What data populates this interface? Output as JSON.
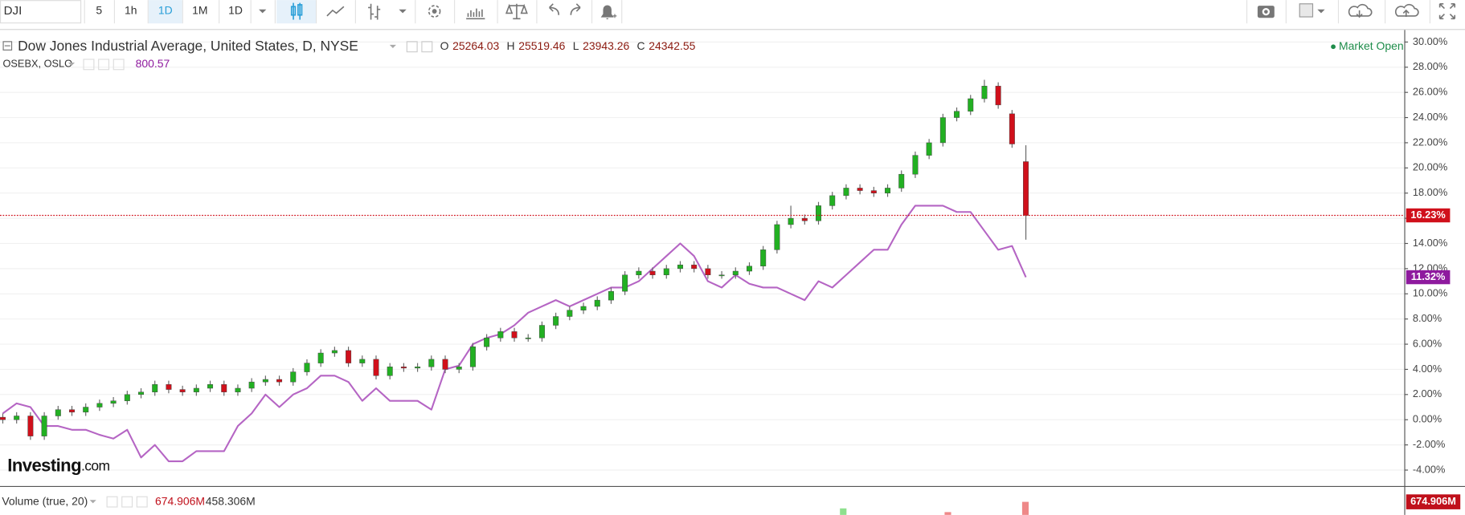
{
  "toolbar": {
    "symbol": "DJI",
    "intervals": [
      "5",
      "1h",
      "1D",
      "1M"
    ],
    "interval_menu": "1D"
  },
  "chart_data": {
    "type": "candlestick",
    "status": "Market Open",
    "ylim": [
      -5.19,
      30.96
    ],
    "yticks": [
      {
        "value": -4,
        "label": "-4.00%"
      },
      {
        "value": -2,
        "label": "-2.00%"
      },
      {
        "value": 0,
        "label": "0.00%"
      },
      {
        "value": 2,
        "label": "2.00%"
      },
      {
        "value": 4,
        "label": "4.00%"
      },
      {
        "value": 6,
        "label": "6.00%"
      },
      {
        "value": 8,
        "label": "8.00%"
      },
      {
        "value": 10,
        "label": "10.00%"
      },
      {
        "value": 12,
        "label": "12.00%"
      },
      {
        "value": 14,
        "label": "14.00%"
      },
      {
        "value": 16,
        "label": "16.00%"
      },
      {
        "value": 18,
        "label": "18.00%"
      },
      {
        "value": 20,
        "label": "20.00%"
      },
      {
        "value": 22,
        "label": "22.00%"
      },
      {
        "value": 24,
        "label": "24.00%"
      },
      {
        "value": 26,
        "label": "26.00%"
      },
      {
        "value": 28,
        "label": "28.00%"
      },
      {
        "value": 30,
        "label": "30.00%"
      }
    ],
    "grid": true,
    "series": [
      {
        "name": "Dow Jones Industrial Average, United States, D, NYSE",
        "type": "candlestick",
        "up_color": "#22b022",
        "down_color": "#d0101b",
        "ohlc": [
          {
            "label": "O",
            "value": 25264.03
          },
          {
            "label": "H",
            "value": 25519.46
          },
          {
            "label": "L",
            "value": 23943.26
          },
          {
            "label": "C",
            "value": 24342.55
          }
        ],
        "last_value_label": "16.23%",
        "open": [
          0.2,
          0.0,
          0.3,
          -1.3,
          0.3,
          0.8,
          0.6,
          1.0,
          1.3,
          1.5,
          2.0,
          2.2,
          2.8,
          2.4,
          2.2,
          2.5,
          2.8,
          2.2,
          2.5,
          3.0,
          3.2,
          3.0,
          3.8,
          4.5,
          5.3,
          5.5,
          4.5,
          4.8,
          3.5,
          4.2,
          4.1,
          4.2,
          4.8,
          4.0,
          4.2,
          5.8,
          6.5,
          7.0,
          6.5,
          6.5,
          7.5,
          8.2,
          8.7,
          9.0,
          9.5,
          10.2,
          11.5,
          11.8,
          11.5,
          12.0,
          12.3,
          12.0,
          11.5,
          11.5,
          11.8,
          12.2,
          13.5,
          15.5,
          16.0,
          15.8,
          17.0,
          17.8,
          18.4,
          18.2,
          18.0,
          18.4,
          19.5,
          21.0,
          22.0,
          24.0,
          24.5,
          25.5,
          26.5,
          24.3,
          20.5
        ],
        "high": [
          0.5,
          0.6,
          0.6,
          0.6,
          1.1,
          1.1,
          1.3,
          1.6,
          1.8,
          2.3,
          2.5,
          3.1,
          3.1,
          2.7,
          2.8,
          3.1,
          3.1,
          2.8,
          3.3,
          3.5,
          3.5,
          4.1,
          4.8,
          5.6,
          5.8,
          5.8,
          5.1,
          5.1,
          4.5,
          4.5,
          4.5,
          5.1,
          5.1,
          4.5,
          6.1,
          6.8,
          7.3,
          7.3,
          6.8,
          7.8,
          8.5,
          9.0,
          9.3,
          9.8,
          10.5,
          11.8,
          12.1,
          12.1,
          12.3,
          12.6,
          12.6,
          12.3,
          11.8,
          12.1,
          12.5,
          13.8,
          15.8,
          17.0,
          16.3,
          17.3,
          18.1,
          18.7,
          18.7,
          18.5,
          18.7,
          19.8,
          21.3,
          22.3,
          24.3,
          24.8,
          25.8,
          27.0,
          26.8,
          24.6,
          21.8
        ],
        "low": [
          -0.3,
          -0.3,
          -1.6,
          -1.6,
          0.0,
          0.3,
          0.3,
          0.7,
          1.0,
          1.2,
          1.7,
          1.9,
          2.1,
          1.9,
          1.9,
          2.2,
          1.9,
          1.9,
          2.2,
          2.7,
          2.7,
          2.7,
          3.5,
          4.2,
          5.0,
          4.2,
          4.2,
          3.2,
          3.2,
          3.8,
          3.8,
          3.9,
          3.7,
          3.7,
          3.9,
          5.5,
          6.2,
          6.2,
          6.2,
          6.2,
          7.2,
          7.9,
          8.4,
          8.7,
          9.2,
          9.9,
          11.2,
          11.2,
          11.2,
          11.7,
          11.7,
          11.2,
          11.2,
          11.2,
          11.5,
          11.9,
          13.2,
          15.2,
          15.5,
          15.5,
          16.7,
          17.5,
          17.9,
          17.7,
          17.7,
          18.1,
          19.2,
          20.7,
          21.7,
          23.7,
          24.2,
          25.2,
          24.7,
          21.6,
          14.3
        ],
        "close": [
          0.0,
          0.3,
          -1.3,
          0.3,
          0.8,
          0.6,
          1.0,
          1.3,
          1.5,
          2.0,
          2.2,
          2.8,
          2.4,
          2.2,
          2.5,
          2.8,
          2.2,
          2.5,
          3.0,
          3.2,
          3.0,
          3.8,
          4.5,
          5.3,
          5.5,
          4.5,
          4.8,
          3.5,
          4.2,
          4.1,
          4.2,
          4.8,
          4.0,
          4.2,
          5.8,
          6.5,
          7.0,
          6.5,
          6.5,
          7.5,
          8.2,
          8.7,
          9.0,
          9.5,
          10.2,
          11.5,
          11.8,
          11.5,
          12.0,
          12.3,
          12.0,
          11.5,
          11.5,
          11.8,
          12.2,
          13.5,
          15.5,
          16.0,
          15.8,
          17.0,
          17.8,
          18.4,
          18.2,
          18.0,
          18.4,
          19.5,
          21.0,
          22.0,
          24.0,
          24.5,
          25.5,
          26.5,
          25.0,
          21.9,
          16.23
        ]
      },
      {
        "name": "OSEBX, OSLO",
        "type": "line",
        "color": "#b565c4",
        "tag_color": "#8e1a9e",
        "last_price": 800.57,
        "last_value_label": "11.32%",
        "values": [
          0.5,
          1.3,
          1.0,
          -0.5,
          -0.5,
          -0.8,
          -0.8,
          -1.2,
          -1.5,
          -0.8,
          -3.0,
          -2.0,
          -3.3,
          -3.3,
          -2.5,
          -2.5,
          -2.5,
          -0.5,
          0.5,
          2.0,
          1.0,
          2.0,
          2.5,
          3.5,
          3.5,
          3.0,
          1.5,
          2.5,
          1.5,
          1.5,
          1.5,
          0.8,
          4.0,
          4.3,
          6.0,
          6.5,
          6.8,
          7.5,
          8.5,
          9.0,
          9.5,
          9.0,
          9.5,
          10.0,
          10.5,
          10.5,
          11.0,
          12.0,
          13.0,
          14.0,
          13.0,
          11.0,
          10.5,
          11.5,
          10.8,
          10.5,
          10.5,
          10.0,
          9.5,
          11.0,
          10.5,
          11.5,
          12.5,
          13.5,
          13.5,
          15.5,
          17.0,
          17.0,
          17.0,
          16.5,
          16.5,
          15.0,
          13.5,
          13.8,
          11.32
        ]
      }
    ]
  },
  "volume": {
    "title": "Volume (true, 20)",
    "values": [
      "674.906M",
      "458.306M"
    ],
    "last_label": "674.906M"
  },
  "brand": {
    "name": "Investing",
    "suffix": ".com"
  }
}
